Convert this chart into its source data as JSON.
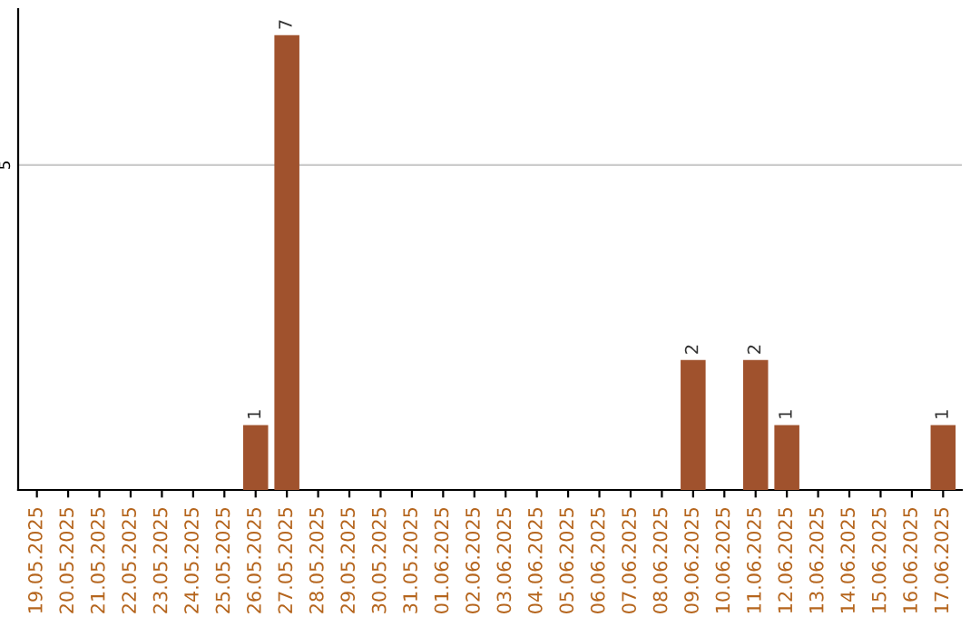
{
  "chart_data": {
    "type": "bar",
    "categories": [
      "19.05.2025",
      "20.05.2025",
      "21.05.2025",
      "22.05.2025",
      "23.05.2025",
      "24.05.2025",
      "25.05.2025",
      "26.05.2025",
      "27.05.2025",
      "28.05.2025",
      "29.05.2025",
      "30.05.2025",
      "31.05.2025",
      "01.06.2025",
      "02.06.2025",
      "03.06.2025",
      "04.06.2025",
      "05.06.2025",
      "06.06.2025",
      "07.06.2025",
      "08.06.2025",
      "09.06.2025",
      "10.06.2025",
      "11.06.2025",
      "12.06.2025",
      "13.06.2025",
      "14.06.2025",
      "15.06.2025",
      "16.06.2025",
      "17.06.2025"
    ],
    "values": [
      0,
      0,
      0,
      0,
      0,
      0,
      0,
      1,
      7,
      0,
      0,
      0,
      0,
      0,
      0,
      0,
      0,
      0,
      0,
      0,
      0,
      2,
      0,
      2,
      1,
      0,
      0,
      0,
      0,
      1
    ],
    "value_labels": [
      null,
      null,
      null,
      null,
      null,
      null,
      null,
      "1",
      "7",
      null,
      null,
      null,
      null,
      null,
      null,
      null,
      null,
      null,
      null,
      null,
      null,
      "2",
      null,
      "2",
      "1",
      null,
      null,
      null,
      null,
      "1"
    ],
    "color": "#a0522d",
    "ylim": [
      0,
      7.4
    ],
    "yticks": [
      5
    ],
    "grid": "y"
  }
}
